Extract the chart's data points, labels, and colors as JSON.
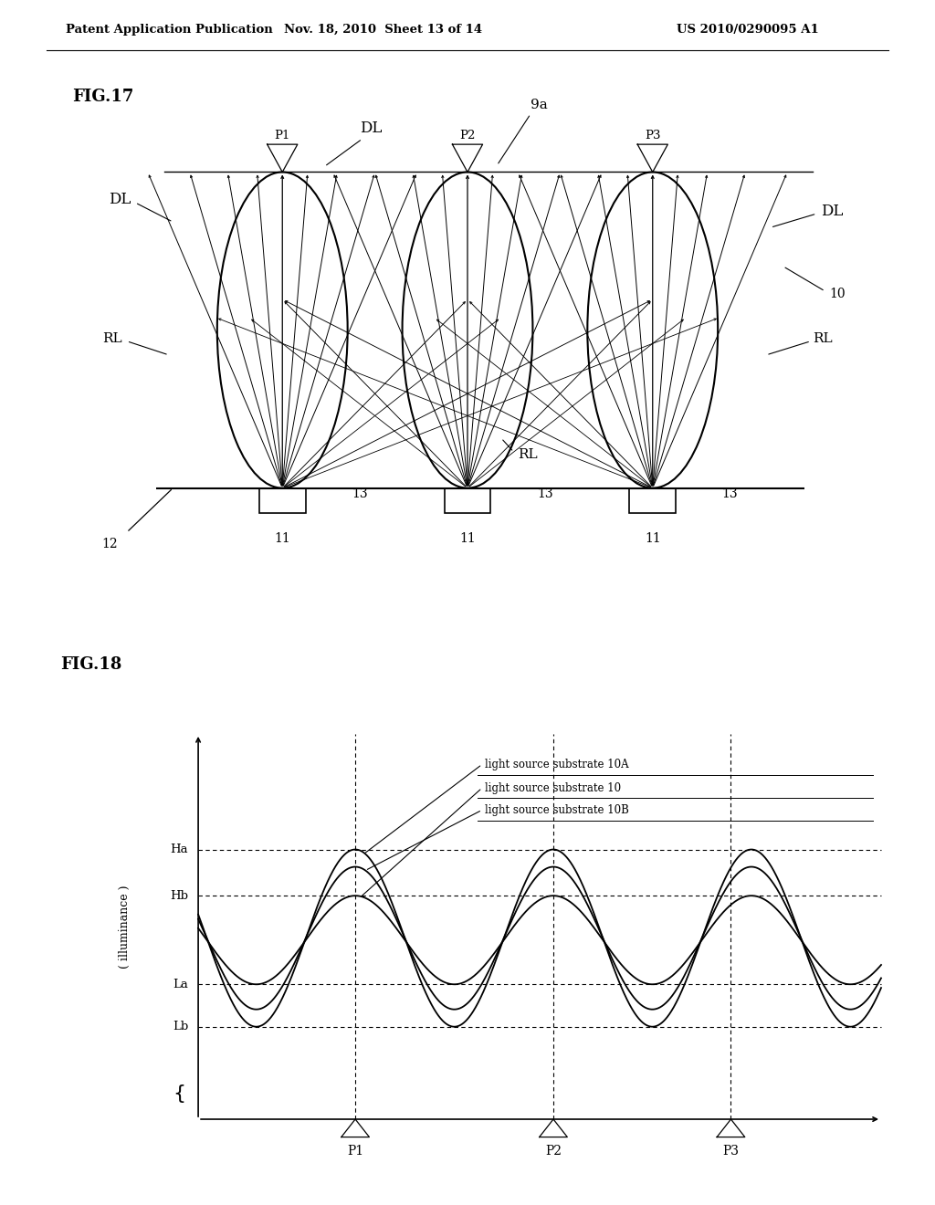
{
  "header_left": "Patent Application Publication",
  "header_mid": "Nov. 18, 2010  Sheet 13 of 14",
  "header_right": "US 2010/0290095 A1",
  "fig17_label": "FIG.17",
  "fig18_label": "FIG.18",
  "bg_color": "#ffffff",
  "line_color": "#000000",
  "led_labels": [
    "P1",
    "P2",
    "P3"
  ],
  "Ha_level": 0.7,
  "Hb_level": 0.58,
  "La_level": 0.35,
  "Lb_level": 0.24
}
